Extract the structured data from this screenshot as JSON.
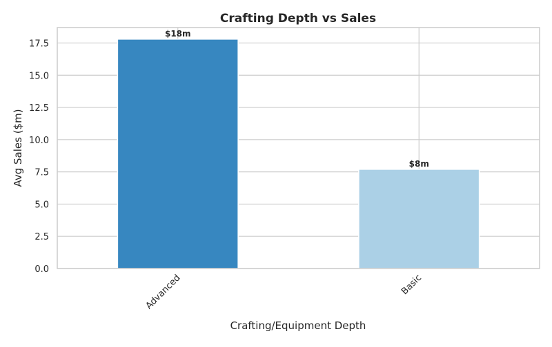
{
  "chart_data": {
    "type": "bar",
    "title": "Crafting Depth vs Sales",
    "xlabel": "Crafting/Equipment Depth",
    "ylabel": "Avg Sales ($m)",
    "categories": [
      "Advanced",
      "Basic"
    ],
    "values": [
      17.8,
      7.7
    ],
    "data_labels": [
      "$18m",
      "$8m"
    ],
    "ylim": [
      0,
      18.7
    ],
    "yticks": [
      0.0,
      2.5,
      5.0,
      7.5,
      10.0,
      12.5,
      15.0,
      17.5
    ],
    "ytick_labels": [
      "0.0",
      "2.5",
      "5.0",
      "7.5",
      "10.0",
      "12.5",
      "15.0",
      "17.5"
    ],
    "grid": true,
    "legend": "none",
    "colors": [
      "#3787c0",
      "#abd0e6"
    ],
    "grid_color": "#cccccc",
    "axis_color": "#cccccc"
  }
}
